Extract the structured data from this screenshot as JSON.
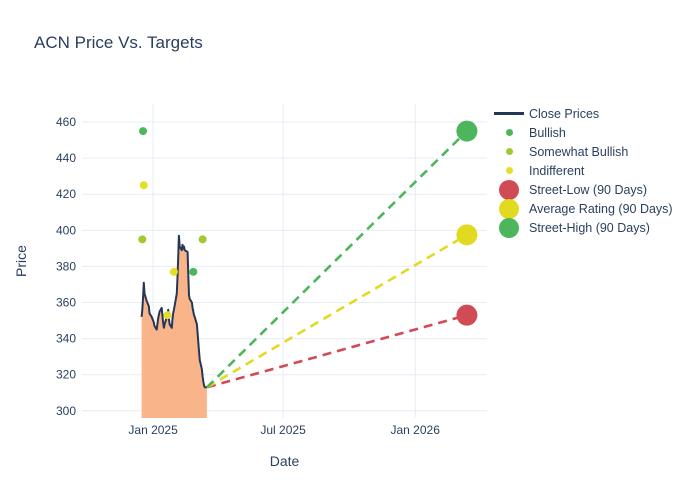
{
  "title": "ACN Price Vs. Targets",
  "axes": {
    "x": {
      "title": "Date",
      "range": [
        "2024-09-24",
        "2026-04-11"
      ],
      "ticks": [
        {
          "value": "2025-01-01",
          "label": "Jan 2025"
        },
        {
          "value": "2025-07-01",
          "label": "Jul 2025"
        },
        {
          "value": "2026-01-01",
          "label": "Jan 2026"
        }
      ]
    },
    "y": {
      "title": "Price",
      "range": [
        296,
        470
      ],
      "ticks": [
        300,
        320,
        340,
        360,
        380,
        400,
        420,
        440,
        460
      ]
    }
  },
  "colors": {
    "text": "#2a3f5f",
    "grid": "#e7ecf5",
    "close_line": "#243756",
    "close_fill": "#f9b48a",
    "bullish": "#4db65c",
    "somewhat_bullish": "#a2c832",
    "indifferent": "#e5de26",
    "street_low": "#d14b57",
    "average": "#e2da20",
    "street_high": "#4db65c"
  },
  "legend": {
    "items": [
      {
        "label": "Close Prices",
        "marker": "line",
        "color": "#243756"
      },
      {
        "label": "Bullish",
        "marker": "dot-small",
        "color": "#4db65c"
      },
      {
        "label": "Somewhat Bullish",
        "marker": "dot-small",
        "color": "#a2c832"
      },
      {
        "label": "Indifferent",
        "marker": "dot-small",
        "color": "#e5de26"
      },
      {
        "label": "Street-Low (90 Days)",
        "marker": "dot-large",
        "color": "#d14b57"
      },
      {
        "label": "Average Rating (90 Days)",
        "marker": "dot-large",
        "color": "#e2da20"
      },
      {
        "label": "Street-High (90 Days)",
        "marker": "dot-large",
        "color": "#4db65c"
      }
    ]
  },
  "chart_data": {
    "type": "line",
    "title": "ACN Price Vs. Targets",
    "xlabel": "Date",
    "ylabel": "Price",
    "ylim": [
      296,
      470
    ],
    "xlim": [
      "2024-09-24",
      "2026-04-11"
    ],
    "grid": true,
    "legend_position": "right",
    "series": [
      {
        "name": "Close Prices",
        "type": "area-line",
        "color": "#243756",
        "fill": "#f9b48a",
        "line_width": 2,
        "points": [
          [
            "2024-12-16",
            352
          ],
          [
            "2024-12-17",
            356
          ],
          [
            "2024-12-18",
            362
          ],
          [
            "2024-12-19",
            371
          ],
          [
            "2024-12-20",
            365
          ],
          [
            "2024-12-23",
            361
          ],
          [
            "2024-12-26",
            358
          ],
          [
            "2024-12-27",
            354
          ],
          [
            "2024-12-30",
            352
          ],
          [
            "2025-01-02",
            349
          ],
          [
            "2025-01-03",
            347
          ],
          [
            "2025-01-06",
            345
          ],
          [
            "2025-01-07",
            348
          ],
          [
            "2025-01-08",
            351
          ],
          [
            "2025-01-10",
            355
          ],
          [
            "2025-01-13",
            357
          ],
          [
            "2025-01-14",
            353
          ],
          [
            "2025-01-15",
            349
          ],
          [
            "2025-01-16",
            346
          ],
          [
            "2025-01-17",
            348
          ],
          [
            "2025-01-21",
            353
          ],
          [
            "2025-01-22",
            356
          ],
          [
            "2025-01-23",
            351
          ],
          [
            "2025-01-24",
            348
          ],
          [
            "2025-01-27",
            346
          ],
          [
            "2025-01-28",
            351
          ],
          [
            "2025-01-29",
            354
          ],
          [
            "2025-01-30",
            356
          ],
          [
            "2025-01-31",
            358
          ],
          [
            "2025-02-03",
            365
          ],
          [
            "2025-02-04",
            374
          ],
          [
            "2025-02-05",
            385
          ],
          [
            "2025-02-06",
            397
          ],
          [
            "2025-02-07",
            391
          ],
          [
            "2025-02-10",
            389
          ],
          [
            "2025-02-11",
            392
          ],
          [
            "2025-02-12",
            390
          ],
          [
            "2025-02-13",
            391
          ],
          [
            "2025-02-14",
            389
          ],
          [
            "2025-02-18",
            388
          ],
          [
            "2025-02-19",
            375
          ],
          [
            "2025-02-20",
            364
          ],
          [
            "2025-02-21",
            362
          ],
          [
            "2025-02-24",
            360
          ],
          [
            "2025-02-25",
            357
          ],
          [
            "2025-02-26",
            355
          ],
          [
            "2025-02-27",
            353
          ],
          [
            "2025-02-28",
            352
          ],
          [
            "2025-03-03",
            348
          ],
          [
            "2025-03-04",
            343
          ],
          [
            "2025-03-05",
            338
          ],
          [
            "2025-03-06",
            333
          ],
          [
            "2025-03-07",
            328
          ],
          [
            "2025-03-10",
            323
          ],
          [
            "2025-03-11",
            319
          ],
          [
            "2025-03-12",
            316
          ],
          [
            "2025-03-13",
            314
          ],
          [
            "2025-03-14",
            313
          ],
          [
            "2025-03-17",
            313
          ]
        ]
      },
      {
        "name": "Bullish",
        "type": "scatter",
        "color": "#4db65c",
        "marker_size": 8,
        "points": [
          [
            "2024-12-18",
            455
          ],
          [
            "2025-02-26",
            377
          ]
        ]
      },
      {
        "name": "Somewhat Bullish",
        "type": "scatter",
        "color": "#a2c832",
        "marker_size": 8,
        "points": [
          [
            "2024-12-17",
            395
          ],
          [
            "2025-03-11",
            395
          ]
        ]
      },
      {
        "name": "Indifferent",
        "type": "scatter",
        "color": "#e5de26",
        "marker_size": 8,
        "points": [
          [
            "2024-12-19",
            425
          ],
          [
            "2025-01-21",
            353
          ],
          [
            "2025-01-30",
            377
          ]
        ]
      },
      {
        "name": "Street-Low (90 Days)",
        "type": "target",
        "color": "#d14b57",
        "marker_size": 21,
        "dash_from": [
          "2025-03-17",
          313
        ],
        "points": [
          [
            "2026-03-14",
            353
          ]
        ]
      },
      {
        "name": "Average Rating (90 Days)",
        "type": "target",
        "color": "#e2da20",
        "marker_size": 21,
        "dash_from": [
          "2025-03-17",
          313
        ],
        "points": [
          [
            "2026-03-14",
            397.5
          ]
        ]
      },
      {
        "name": "Street-High (90 Days)",
        "type": "target",
        "color": "#4db65c",
        "marker_size": 21,
        "dash_from": [
          "2025-03-17",
          313
        ],
        "points": [
          [
            "2026-03-14",
            455
          ]
        ]
      }
    ]
  }
}
